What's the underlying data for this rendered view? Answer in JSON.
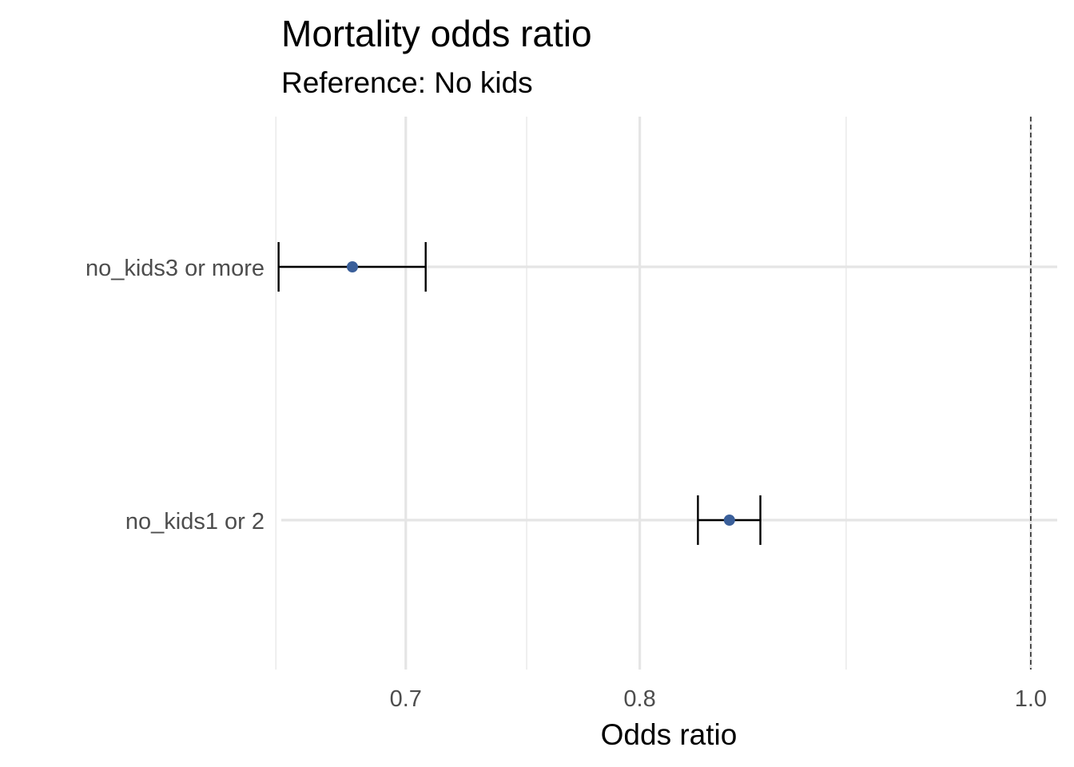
{
  "chart_data": {
    "type": "errorbar",
    "title": "Mortality odds ratio",
    "subtitle": "Reference: No kids",
    "xlabel": "Odds ratio",
    "ylabel": "",
    "x_scale": "log",
    "xlim": [
      0.652,
      1.0152
    ],
    "x_ticks": [
      {
        "value": 0.7,
        "label": "0.7"
      },
      {
        "value": 0.8,
        "label": "0.8"
      },
      {
        "value": 1.0,
        "label": "1.0"
      }
    ],
    "x_minor_ticks": [
      0.65,
      0.75,
      0.9
    ],
    "reference_line": {
      "value": 1.0,
      "style": "dashed"
    },
    "categories": [
      "no_kids3 or more",
      "no_kids1 or 2"
    ],
    "estimates": [
      0.679,
      0.842
    ],
    "lower": [
      0.651,
      0.827
    ],
    "upper": [
      0.708,
      0.857
    ],
    "point_color": "#3a5f9a",
    "errorbar_color": "#000000",
    "grid": true,
    "legend": "none"
  }
}
